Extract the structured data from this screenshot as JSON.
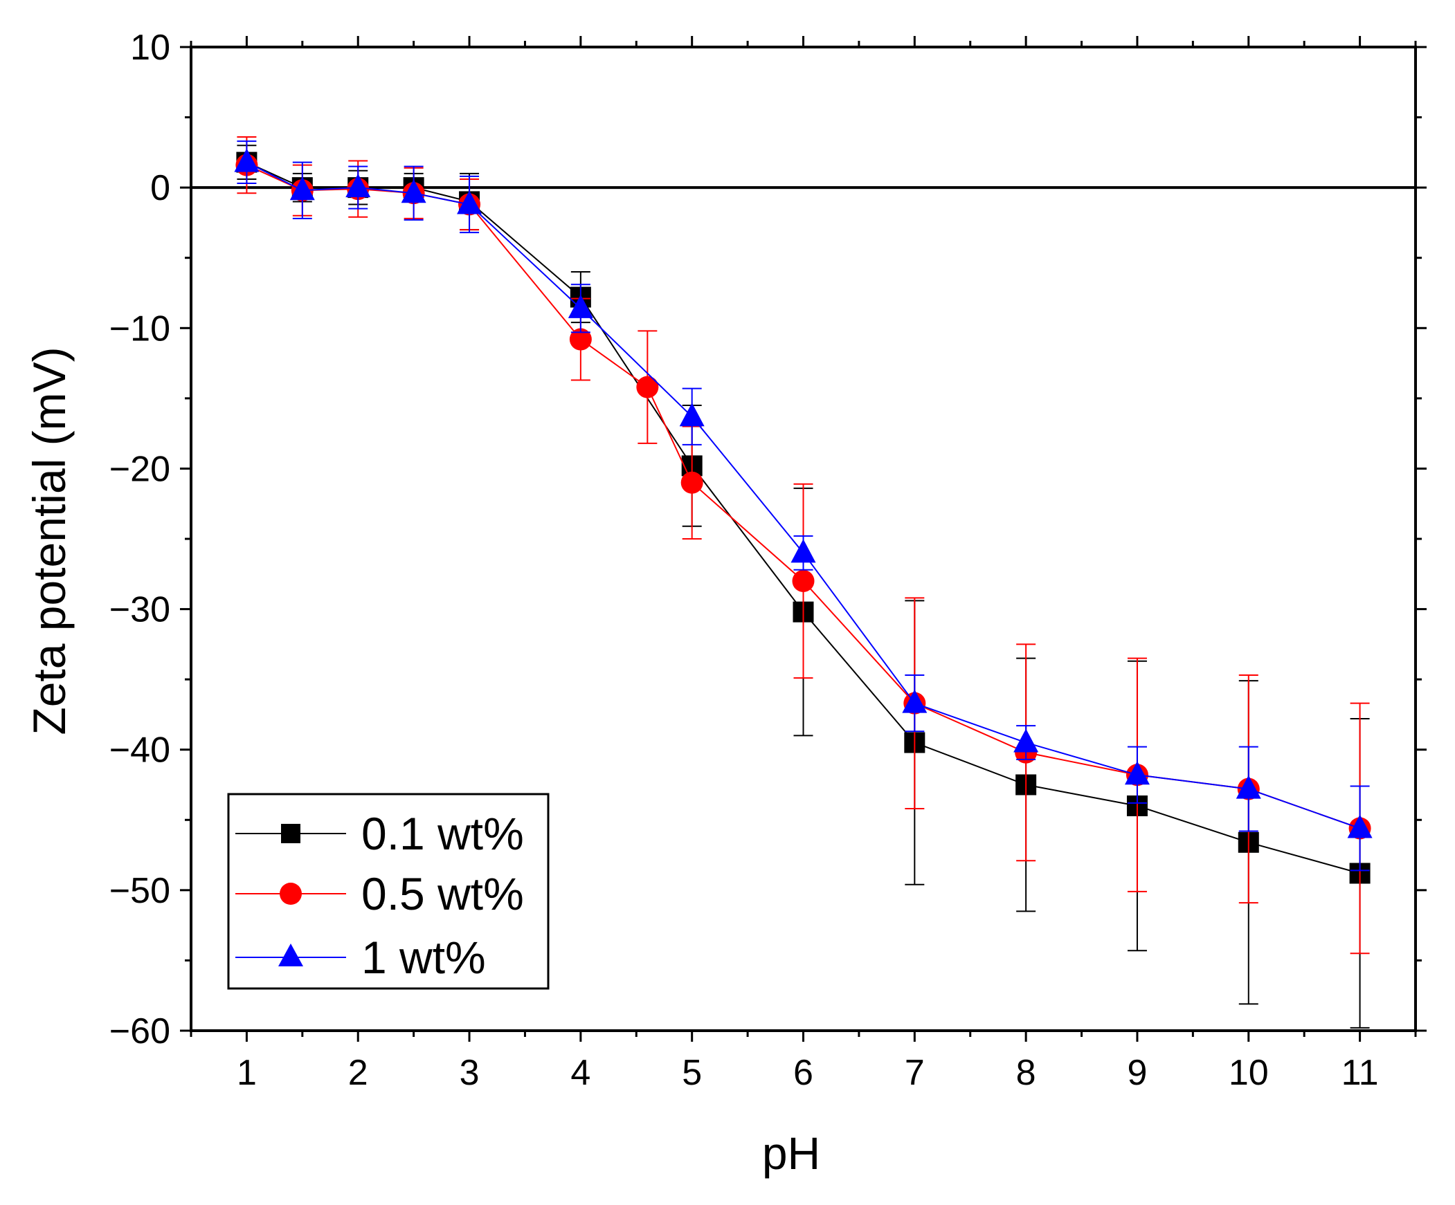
{
  "chart_data": {
    "type": "scatter",
    "title": "",
    "xlabel": "pH",
    "ylabel": "Zeta potential (mV)",
    "xlim": [
      0.5,
      11.5
    ],
    "ylim": [
      -60,
      10
    ],
    "xticks": [
      1,
      2,
      3,
      4,
      5,
      6,
      7,
      8,
      9,
      10,
      11
    ],
    "yticks": [
      -60,
      -50,
      -40,
      -30,
      -20,
      -10,
      0,
      10
    ],
    "ytick_labels": [
      "−60",
      "−50",
      "−40",
      "−30",
      "−20",
      "−10",
      "0",
      "10"
    ],
    "grid": false,
    "zero_line": true,
    "legend_position": "bottom-left",
    "series": [
      {
        "name": "0.1 wt%",
        "color": "#000000",
        "marker": "square",
        "x": [
          1,
          1.5,
          2,
          2.5,
          3,
          4,
          5,
          6,
          7,
          8,
          9,
          10,
          11
        ],
        "y": [
          1.8,
          0,
          0,
          0,
          -1,
          -7.8,
          -19.8,
          -30.2,
          -39.5,
          -42.5,
          -44,
          -46.6,
          -48.8
        ],
        "err": [
          1.2,
          1.0,
          1.2,
          1.0,
          2.0,
          1.8,
          4.3,
          8.8,
          10.1,
          9.0,
          10.3,
          11.5,
          11
        ]
      },
      {
        "name": "0.5 wt%",
        "color": "#ff0000",
        "marker": "circle",
        "x": [
          1,
          1.5,
          2,
          2.5,
          3,
          4,
          4.6,
          5,
          6,
          7,
          8,
          9,
          10,
          11
        ],
        "y": [
          1.6,
          -0.2,
          -0.1,
          -0.4,
          -1.2,
          -10.8,
          -14.2,
          -21,
          -28,
          -36.7,
          -40.2,
          -41.8,
          -42.8,
          -45.6
        ],
        "err": [
          2.0,
          1.8,
          2.0,
          1.8,
          1.8,
          2.9,
          4.0,
          4.0,
          6.9,
          7.5,
          7.7,
          8.3,
          8.1,
          8.9
        ]
      },
      {
        "name": "1 wt%",
        "color": "#0000ff",
        "marker": "triangle",
        "x": [
          1,
          1.5,
          2,
          2.5,
          3,
          4,
          5,
          6,
          7,
          8,
          9,
          10,
          11
        ],
        "y": [
          1.8,
          -0.2,
          0,
          -0.4,
          -1.2,
          -8.6,
          -16.3,
          -26,
          -36.7,
          -39.5,
          -41.8,
          -42.8,
          -45.6
        ],
        "err": [
          1.5,
          2.0,
          1.5,
          1.9,
          2.0,
          1.7,
          2.0,
          1.2,
          2.0,
          1.2,
          2.0,
          3.0,
          3.0
        ]
      }
    ]
  }
}
